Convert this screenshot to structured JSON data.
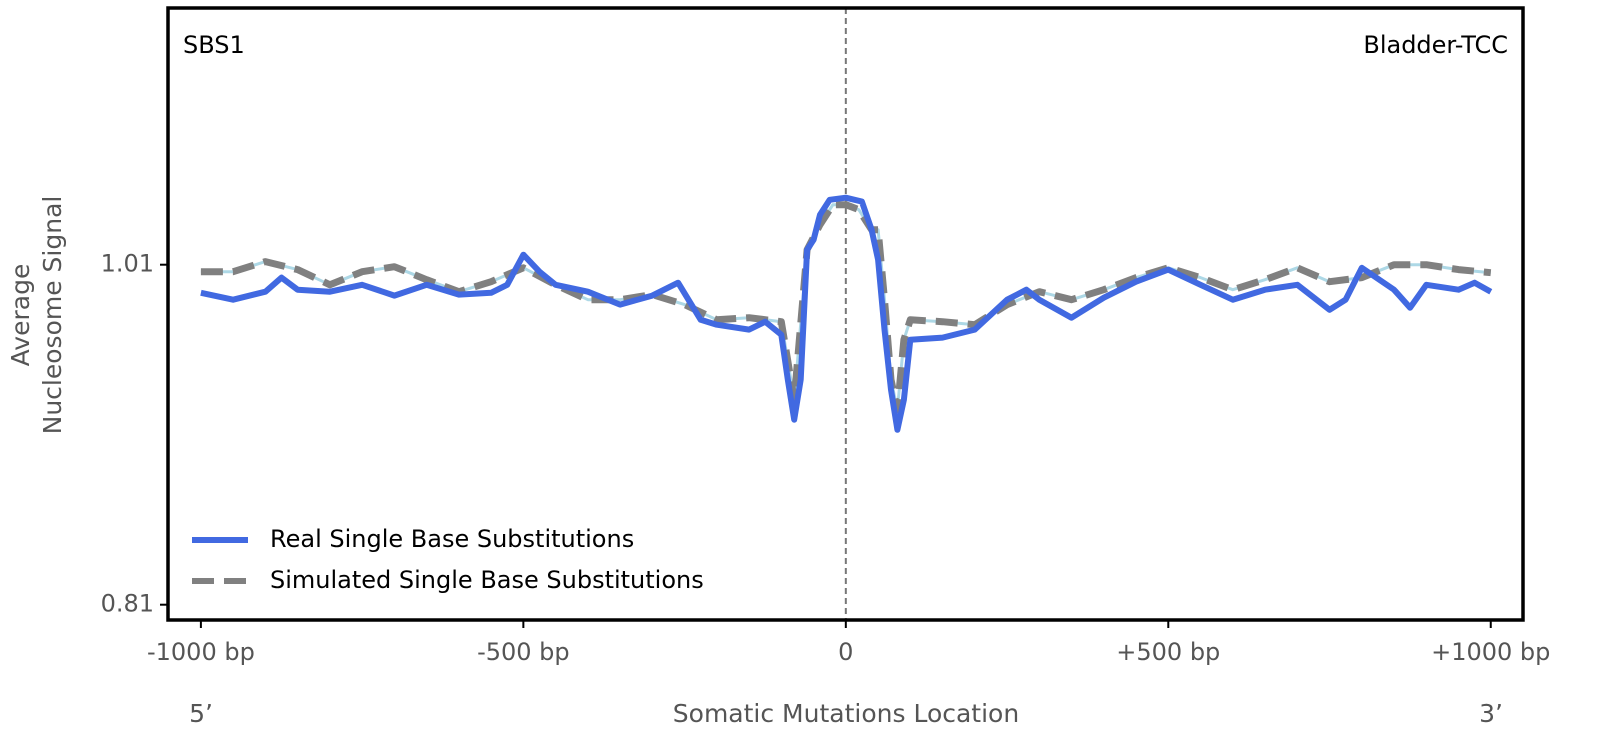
{
  "chart_data": {
    "type": "line",
    "annotations": {
      "signature": "SBS1",
      "cancer": "Bladder-TCC",
      "left_end": "5’",
      "right_end": "3’"
    },
    "xlabel": "Somatic Mutations Location",
    "ylabel": [
      "Average",
      "Nucleosome Signal"
    ],
    "xlim": [
      -1051,
      1050
    ],
    "ylim": [
      0.801,
      1.161
    ],
    "xticks": [
      {
        "value": -1000,
        "label": "-1000 bp"
      },
      {
        "value": -500,
        "label": "-500 bp"
      },
      0,
      {
        "value": 500,
        "label": "+500 bp"
      },
      {
        "value": 1000,
        "label": "+1000 bp"
      }
    ],
    "yticks": [
      0.81,
      1.01
    ],
    "vline": 0,
    "legend": "lower left",
    "series": [
      {
        "name": "Real Single Base Substitutions",
        "color": "#4169e1",
        "style": "solid",
        "x": [
          -1000,
          -950,
          -900,
          -875,
          -850,
          -800,
          -750,
          -700,
          -650,
          -600,
          -550,
          -525,
          -500,
          -475,
          -450,
          -400,
          -350,
          -300,
          -260,
          -225,
          -200,
          -150,
          -125,
          -100,
          -90,
          -80,
          -70,
          -60,
          -50,
          -40,
          -25,
          0,
          25,
          40,
          50,
          60,
          70,
          80,
          90,
          100,
          150,
          200,
          250,
          280,
          300,
          350,
          400,
          450,
          500,
          550,
          600,
          650,
          700,
          750,
          775,
          800,
          850,
          875,
          900,
          950,
          975,
          1000
        ],
        "values": [
          0.9935,
          0.9894,
          0.9941,
          1.0024,
          0.9953,
          0.9941,
          0.9982,
          0.9918,
          0.9982,
          0.9924,
          0.9935,
          0.9982,
          1.0159,
          1.0059,
          0.9982,
          0.9941,
          0.9865,
          0.9918,
          0.9994,
          0.9776,
          0.9747,
          0.9718,
          0.9765,
          0.9688,
          0.9424,
          0.9188,
          0.9424,
          1.0188,
          1.0247,
          1.0394,
          1.0482,
          1.0494,
          1.0471,
          1.0306,
          1.0129,
          0.9718,
          0.9365,
          0.9129,
          0.9306,
          0.9659,
          0.9671,
          0.9718,
          0.9894,
          0.9953,
          0.9894,
          0.9788,
          0.9906,
          1.0,
          1.0071,
          0.9982,
          0.9894,
          0.9953,
          0.9982,
          0.9835,
          0.9894,
          1.0082,
          0.9953,
          0.9847,
          0.9982,
          0.9953,
          0.9994,
          0.9941
        ]
      },
      {
        "name": "Simulated Single Base Substitutions",
        "color": "#808080",
        "style": "dashed",
        "x": [
          -1000,
          -950,
          -900,
          -850,
          -800,
          -750,
          -700,
          -650,
          -600,
          -550,
          -500,
          -450,
          -400,
          -350,
          -300,
          -250,
          -200,
          -150,
          -100,
          -80,
          -60,
          -40,
          -20,
          0,
          20,
          40,
          50,
          60,
          70,
          80,
          90,
          100,
          150,
          200,
          250,
          300,
          350,
          400,
          450,
          500,
          550,
          600,
          650,
          700,
          750,
          800,
          850,
          900,
          950,
          1000
        ],
        "values": [
          1.0059,
          1.0059,
          1.0118,
          1.0071,
          0.9982,
          1.0059,
          1.0088,
          1.0012,
          0.9941,
          1.0,
          1.0082,
          0.9982,
          0.9894,
          0.9894,
          0.9924,
          0.9865,
          0.9776,
          0.9788,
          0.9765,
          0.9306,
          1.0188,
          1.0335,
          1.0453,
          1.0453,
          1.0424,
          1.0306,
          1.0306,
          0.9894,
          0.9424,
          0.9247,
          0.9659,
          0.9776,
          0.9765,
          0.9747,
          0.9865,
          0.9941,
          0.9894,
          0.9953,
          1.0024,
          1.0082,
          1.0024,
          0.9953,
          1.0012,
          1.0082,
          1.0,
          1.0024,
          1.01,
          1.01,
          1.0071,
          1.0053
        ]
      }
    ]
  }
}
